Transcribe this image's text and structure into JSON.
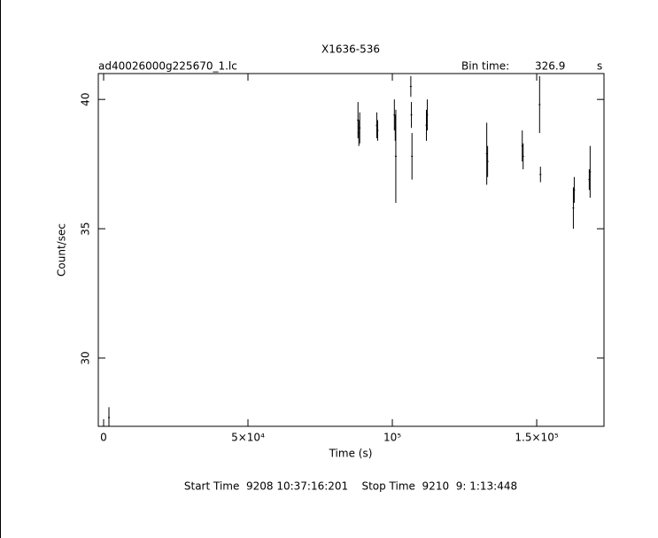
{
  "chart_data": {
    "type": "errorbar",
    "title": "X1636-536",
    "subtitle": "ad40026000g225670_1.lc",
    "bin_label": "Bin time:",
    "bin_time": 326.9,
    "bin_unit": "s",
    "x_label": "Time (s)",
    "y_label": "Count/sec",
    "footer": "Start Time  9208 10:37:16:201    Stop Time  9210  9: 1:13:448",
    "xlim": [
      -1840,
      173300
    ],
    "ylim": [
      27.36,
      41
    ],
    "xticks": [
      0,
      {
        "value": 50000,
        "label": "5×10⁴"
      },
      {
        "value": 100000,
        "label": "10⁵"
      },
      {
        "value": 150000,
        "label": "1.5×10⁵"
      }
    ],
    "yticks": [
      30,
      35,
      40
    ],
    "series": [
      {
        "color": "#000000",
        "x": [
          1840,
          88100,
          88400,
          88700,
          94600,
          94900,
          100700,
          101000,
          101200,
          106400,
          106600,
          106800,
          111800,
          112100,
          132700,
          133000,
          145000,
          145300,
          151000,
          151300,
          162700,
          163000,
          168200,
          168500
        ],
        "values": [
          27.7,
          39.2,
          38.7,
          38.9,
          39.0,
          38.8,
          39.4,
          38.9,
          37.8,
          40.5,
          39.4,
          37.8,
          39.0,
          39.4,
          37.9,
          37.6,
          38.2,
          37.8,
          39.8,
          37.1,
          35.8,
          36.5,
          36.9,
          37.2
        ],
        "errors": [
          0.4,
          0.7,
          0.5,
          0.6,
          0.5,
          0.4,
          0.6,
          0.5,
          1.8,
          0.4,
          0.5,
          0.9,
          0.6,
          0.6,
          1.2,
          0.6,
          0.6,
          0.5,
          1.1,
          0.3,
          0.8,
          0.5,
          0.4,
          1.0
        ]
      }
    ]
  }
}
